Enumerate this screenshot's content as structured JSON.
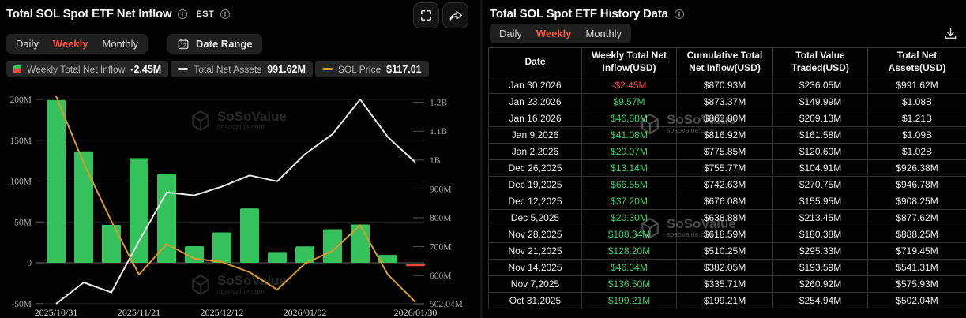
{
  "accent_color": "#f4503c",
  "watermark": {
    "brand": "SoSoValue",
    "domain": "sosovalue.com"
  },
  "left_panel": {
    "title": "Total SOL Spot ETF Net Inflow",
    "est_label": "EST",
    "tabs": [
      "Daily",
      "Weekly",
      "Monthly"
    ],
    "active_tab": "Weekly",
    "date_range_label": "Date Range",
    "date_range_icon_day": "12",
    "legend": [
      {
        "label": "Weekly Total Net Inflow",
        "value": "-2.45M",
        "icon": "green-red-square"
      },
      {
        "label": "Total Net Assets",
        "value": "991.62M",
        "icon": "white-dash"
      },
      {
        "label": "SOL Price",
        "value": "$117.01",
        "icon": "orange-dash"
      }
    ]
  },
  "chart_data": {
    "type": "bar+line combo",
    "categories": [
      "2025/10/31",
      "2025/11/07",
      "2025/11/14",
      "2025/11/21",
      "2025/11/28",
      "2025/12/05",
      "2025/12/12",
      "2025/12/19",
      "2025/12/26",
      "2026/01/02",
      "2026/01/09",
      "2026/01/16",
      "2026/01/23",
      "2026/01/30"
    ],
    "series": [
      {
        "name": "Weekly Total Net Inflow",
        "type": "bar",
        "axis": "left",
        "unit": "M USD",
        "values": [
          199.21,
          136.5,
          46.34,
          128.2,
          108.34,
          20.3,
          37.2,
          66.55,
          13.14,
          20.07,
          41.08,
          46.88,
          9.57,
          -2.45
        ]
      },
      {
        "name": "Total Net Assets",
        "type": "line",
        "axis": "right",
        "unit": "M USD",
        "values": [
          502.04,
          575.93,
          541.31,
          719.45,
          888.25,
          877.62,
          908.25,
          946.78,
          926.38,
          1020,
          1090,
          1210,
          1080,
          991.62
        ]
      },
      {
        "name": "SOL Price",
        "type": "line",
        "axis": "hidden",
        "unit": "USD",
        "current_value": 117.01,
        "plot_values_left_axis_M": [
          204,
          122,
          51,
          -14.5,
          23,
          5,
          1,
          -11.6,
          -33,
          -1,
          14.5,
          46,
          -14.5,
          -48
        ]
      }
    ],
    "left_axis": {
      "ticks": [
        200,
        150,
        100,
        50,
        0,
        -50
      ],
      "labels": [
        "200M",
        "150M",
        "100M",
        "50M",
        "0",
        "-50M"
      ]
    },
    "right_axis": {
      "tick_values": [
        1200,
        1100,
        1000,
        900,
        800,
        700,
        600,
        502.04
      ],
      "tick_labels": [
        "1.2B",
        "1.1B",
        "1B",
        "900M",
        "800M",
        "700M",
        "600M",
        "502.04M"
      ],
      "min": 502.04,
      "max": 1210
    },
    "x_tick_labels": [
      "2025/10/31",
      "2025/11/21",
      "2025/12/12",
      "2026/01/02",
      "2026/01/30"
    ],
    "x_tick_indices": [
      0,
      3,
      6,
      9,
      13
    ],
    "grid": true,
    "colors": {
      "bar_positive": "#35c15c",
      "bar_negative": "#f2463c",
      "net_assets_line": "#e8e8e8",
      "sol_price_line": "#d89b2d"
    }
  },
  "right_panel": {
    "title": "Total SOL Spot ETF History Data",
    "tabs": [
      "Daily",
      "Weekly",
      "Monthly"
    ],
    "active_tab": "Weekly",
    "table": {
      "positive_color": "#3fcf6d",
      "negative_color": "#f3453f",
      "headers": [
        "Date",
        "Weekly Total Net Inflow(USD)",
        "Cumulative Total Net Inflow(USD)",
        "Total Value Traded(USD)",
        "Total Net Assets(USD)"
      ],
      "rows": [
        [
          "Jan 30,2026",
          "-$2.45M",
          "$870.93M",
          "$236.05M",
          "$991.62M"
        ],
        [
          "Jan 23,2026",
          "$9.57M",
          "$873.37M",
          "$149.99M",
          "$1.08B"
        ],
        [
          "Jan 16,2026",
          "$46.88M",
          "$863.80M",
          "$209.13M",
          "$1.21B"
        ],
        [
          "Jan 9,2026",
          "$41.08M",
          "$816.92M",
          "$161.58M",
          "$1.09B"
        ],
        [
          "Jan 2,2026",
          "$20.07M",
          "$775.85M",
          "$120.60M",
          "$1.02B"
        ],
        [
          "Dec 26,2025",
          "$13.14M",
          "$755.77M",
          "$104.91M",
          "$926.38M"
        ],
        [
          "Dec 19,2025",
          "$66.55M",
          "$742.63M",
          "$270.75M",
          "$946.78M"
        ],
        [
          "Dec 12,2025",
          "$37.20M",
          "$676.08M",
          "$155.95M",
          "$908.25M"
        ],
        [
          "Dec 5,2025",
          "$20.30M",
          "$638.88M",
          "$213.45M",
          "$877.62M"
        ],
        [
          "Nov 28,2025",
          "$108.34M",
          "$618.59M",
          "$180.38M",
          "$888.25M"
        ],
        [
          "Nov 21,2025",
          "$128.20M",
          "$510.25M",
          "$295.33M",
          "$719.45M"
        ],
        [
          "Nov 14,2025",
          "$46.34M",
          "$382.05M",
          "$193.59M",
          "$541.31M"
        ],
        [
          "Nov 7,2025",
          "$136.50M",
          "$335.71M",
          "$260.92M",
          "$575.93M"
        ],
        [
          "Oct 31,2025",
          "$199.21M",
          "$199.21M",
          "$254.94M",
          "$502.04M"
        ]
      ]
    }
  }
}
